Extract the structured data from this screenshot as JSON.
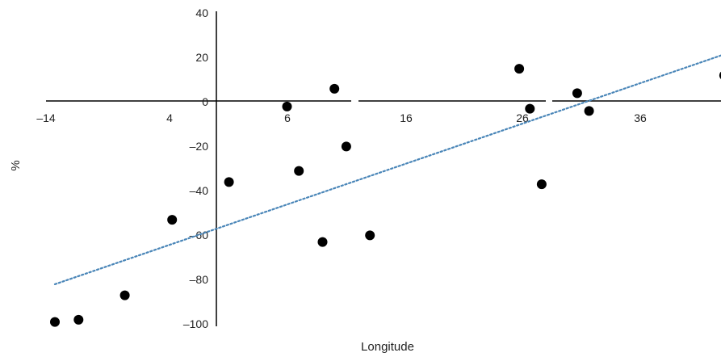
{
  "chart_data": {
    "type": "scatter",
    "title": "",
    "xlabel": "Longitude",
    "ylabel": "%",
    "x_ticks": [
      "–14",
      "4",
      "6",
      "16",
      "26",
      "36"
    ],
    "y_ticks": [
      "40",
      "20",
      "0",
      "–20",
      "–40",
      "–60",
      "–80",
      "–100"
    ],
    "ylim": [
      -100,
      40
    ],
    "grid": false,
    "legend": "none",
    "series": [
      {
        "points": [
          {
            "x": -14.0,
            "y": -99.5
          },
          {
            "x": -12.0,
            "y": -98.5
          },
          {
            "x": -8.1,
            "y": -87.5
          },
          {
            "x": -4.1,
            "y": -53.5
          },
          {
            "x": 0.7,
            "y": -36.5
          },
          {
            "x": 5.6,
            "y": -2.5
          },
          {
            "x": 6.6,
            "y": -31.5
          },
          {
            "x": 8.6,
            "y": -63.5
          },
          {
            "x": 9.6,
            "y": 5.5
          },
          {
            "x": 10.6,
            "y": -20.5
          },
          {
            "x": 12.6,
            "y": -60.5
          },
          {
            "x": 25.2,
            "y": 14.5
          },
          {
            "x": 26.1,
            "y": -3.5
          },
          {
            "x": 27.1,
            "y": -37.5
          },
          {
            "x": 30.1,
            "y": 3.5
          },
          {
            "x": 31.1,
            "y": -4.5
          },
          {
            "x": 42.5,
            "y": 11.5
          }
        ]
      }
    ],
    "trendline": {
      "style": "dotted",
      "color": "#4a86b8",
      "from": {
        "x": -14.0,
        "y": -82.5
      },
      "to": {
        "x": 42.5,
        "y": 21.0
      }
    },
    "point_color": "#000000"
  }
}
